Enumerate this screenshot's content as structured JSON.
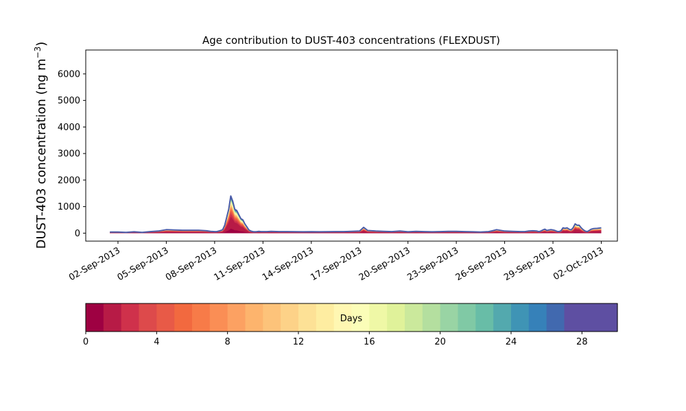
{
  "chart_data": {
    "type": "area",
    "title": "Age contribution to DUST-403 concentrations (FLEXDUST)",
    "ylabel": "DUST-403 concentration (ng m",
    "ylabel_exp": "−3",
    "ylabel_close": ")",
    "ylim": [
      -300,
      6900
    ],
    "yticks": [
      0,
      1000,
      2000,
      3000,
      4000,
      5000,
      6000
    ],
    "xlim": [
      "2013-08-31T00:00",
      "2013-10-03T00:00"
    ],
    "xticks": [
      "2013-09-02",
      "2013-09-05",
      "2013-09-08",
      "2013-09-11",
      "2013-09-14",
      "2013-09-17",
      "2013-09-20",
      "2013-09-23",
      "2013-09-26",
      "2013-09-29",
      "2013-10-02"
    ],
    "xticklabels": [
      "02-Sep-2013",
      "05-Sep-2013",
      "08-Sep-2013",
      "11-Sep-2013",
      "14-Sep-2013",
      "17-Sep-2013",
      "20-Sep-2013",
      "23-Sep-2013",
      "26-Sep-2013",
      "29-Sep-2013",
      "02-Oct-2013"
    ],
    "total_series": {
      "x": [
        "2013-09-01T12:00",
        "2013-09-02T00:00",
        "2013-09-02T12:00",
        "2013-09-03T00:00",
        "2013-09-03T12:00",
        "2013-09-04T00:00",
        "2013-09-04T12:00",
        "2013-09-05T00:00",
        "2013-09-05T12:00",
        "2013-09-06T00:00",
        "2013-09-06T12:00",
        "2013-09-07T00:00",
        "2013-09-07T06:00",
        "2013-09-07T12:00",
        "2013-09-07T18:00",
        "2013-09-08T00:00",
        "2013-09-08T03:00",
        "2013-09-08T06:00",
        "2013-09-08T09:00",
        "2013-09-08T12:00",
        "2013-09-08T15:00",
        "2013-09-08T18:00",
        "2013-09-08T21:00",
        "2013-09-09T00:00",
        "2013-09-09T03:00",
        "2013-09-09T06:00",
        "2013-09-09T09:00",
        "2013-09-09T12:00",
        "2013-09-09T15:00",
        "2013-09-09T18:00",
        "2013-09-09T21:00",
        "2013-09-10T00:00",
        "2013-09-10T03:00",
        "2013-09-10T06:00",
        "2013-09-10T09:00",
        "2013-09-10T12:00",
        "2013-09-10T15:00",
        "2013-09-10T18:00",
        "2013-09-10T21:00",
        "2013-09-11T00:00",
        "2013-09-11T06:00",
        "2013-09-11T12:00",
        "2013-09-12T00:00",
        "2013-09-12T12:00",
        "2013-09-13T00:00",
        "2013-09-13T12:00",
        "2013-09-14T00:00",
        "2013-09-14T12:00",
        "2013-09-15T00:00",
        "2013-09-15T12:00",
        "2013-09-16T00:00",
        "2013-09-16T12:00",
        "2013-09-17T00:00",
        "2013-09-17T06:00",
        "2013-09-17T12:00",
        "2013-09-18T00:00",
        "2013-09-18T12:00",
        "2013-09-19T00:00",
        "2013-09-19T12:00",
        "2013-09-20T00:00",
        "2013-09-20T12:00",
        "2013-09-21T00:00",
        "2013-09-21T12:00",
        "2013-09-22T00:00",
        "2013-09-22T12:00",
        "2013-09-23T00:00",
        "2013-09-23T12:00",
        "2013-09-24T00:00",
        "2013-09-24T12:00",
        "2013-09-25T00:00",
        "2013-09-25T06:00",
        "2013-09-25T12:00",
        "2013-09-26T00:00",
        "2013-09-26T12:00",
        "2013-09-27T00:00",
        "2013-09-27T06:00",
        "2013-09-27T12:00",
        "2013-09-27T18:00",
        "2013-09-28T00:00",
        "2013-09-28T03:00",
        "2013-09-28T06:00",
        "2013-09-28T09:00",
        "2013-09-28T12:00",
        "2013-09-28T15:00",
        "2013-09-28T18:00",
        "2013-09-28T21:00",
        "2013-09-29T00:00",
        "2013-09-29T03:00",
        "2013-09-29T06:00",
        "2013-09-29T09:00",
        "2013-09-29T12:00",
        "2013-09-29T15:00",
        "2013-09-29T18:00",
        "2013-09-29T21:00",
        "2013-09-30T00:00",
        "2013-09-30T03:00",
        "2013-09-30T06:00",
        "2013-09-30T09:00",
        "2013-09-30T12:00",
        "2013-09-30T15:00",
        "2013-09-30T18:00",
        "2013-09-30T21:00",
        "2013-10-01T00:00",
        "2013-10-01T03:00",
        "2013-10-01T06:00",
        "2013-10-01T09:00",
        "2013-10-01T12:00",
        "2013-10-01T18:00",
        "2013-10-02T00:00"
      ],
      "y": [
        40,
        40,
        30,
        50,
        30,
        60,
        80,
        130,
        120,
        110,
        110,
        110,
        100,
        90,
        70,
        60,
        60,
        80,
        100,
        130,
        300,
        600,
        900,
        1400,
        1200,
        900,
        850,
        700,
        550,
        500,
        350,
        240,
        120,
        80,
        60,
        50,
        60,
        70,
        60,
        60,
        60,
        70,
        60,
        60,
        55,
        50,
        55,
        50,
        55,
        60,
        60,
        70,
        80,
        220,
        100,
        80,
        70,
        60,
        80,
        50,
        70,
        60,
        50,
        60,
        70,
        70,
        60,
        50,
        40,
        60,
        90,
        130,
        80,
        70,
        60,
        60,
        80,
        90,
        80,
        60,
        80,
        120,
        150,
        100,
        120,
        130,
        120,
        100,
        70,
        60,
        90,
        200,
        180,
        200,
        150,
        120,
        200,
        350,
        300,
        300,
        200,
        130,
        80,
        60,
        100,
        150,
        170,
        180,
        200
      ]
    },
    "colorbar": {
      "label": "Days",
      "range": [
        0,
        30
      ],
      "ticks": [
        0,
        4,
        8,
        12,
        16,
        20,
        24,
        28
      ],
      "colors": [
        "#9e0142",
        "#b71b46",
        "#cf314b",
        "#dd4a4b",
        "#e85a47",
        "#f2693f",
        "#f77b48",
        "#fa8e55",
        "#fca162",
        "#fdb46d",
        "#fdc37a",
        "#fdd288",
        "#fde196",
        "#feeda1",
        "#fff7b2",
        "#fbfdb8",
        "#eff8a6",
        "#e0f29a",
        "#cbe99c",
        "#b4df9f",
        "#99d4a4",
        "#80c9a5",
        "#68bda7",
        "#53a9ae",
        "#3f94b5",
        "#3681b9",
        "#4169af",
        "#5e4fa2",
        "#5e4fa2",
        "#5e4fa2"
      ]
    }
  }
}
